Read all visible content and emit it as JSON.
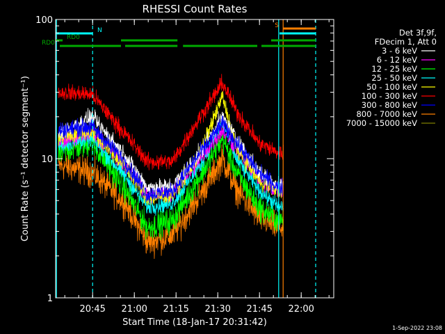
{
  "chart_data": {
    "type": "line",
    "title": "RHESSI Count Rates",
    "xlabel": "Start Time (18-Jan-17 20:31:42)",
    "ylabel": "Count Rate (s⁻¹ detector segment⁻¹)",
    "yscale": "log",
    "ylim": [
      1,
      100
    ],
    "xlim_minutes": [
      0,
      100
    ],
    "x_ticks": [
      {
        "label": "20:45",
        "min": 13.3
      },
      {
        "label": "21:00",
        "min": 28.3
      },
      {
        "label": "21:15",
        "min": 43.3
      },
      {
        "label": "21:30",
        "min": 58.3
      },
      {
        "label": "21:45",
        "min": 73.3
      },
      {
        "label": "22:00",
        "min": 88.3
      }
    ],
    "y_ticks": [
      {
        "label": "1",
        "value": 1
      },
      {
        "label": "10",
        "value": 10
      },
      {
        "label": "100",
        "value": 100
      }
    ],
    "legend_header": [
      "Det 3f,9f,",
      "FDecim 1, Att 0"
    ],
    "series": [
      {
        "name": "3 - 6 keV",
        "color": "#ffffff",
        "keypoints": [
          [
            1,
            15
          ],
          [
            13,
            20
          ],
          [
            25,
            10.5
          ],
          [
            33,
            6.2
          ],
          [
            42,
            6.3
          ],
          [
            52,
            11
          ],
          [
            60,
            20
          ],
          [
            65,
            14
          ],
          [
            73,
            8
          ],
          [
            80,
            6.5
          ],
          [
            82,
            6.5
          ]
        ]
      },
      {
        "name": "6 - 12 keV",
        "color": "#ff00ff",
        "keypoints": [
          [
            1,
            13
          ],
          [
            13,
            16
          ],
          [
            25,
            9
          ],
          [
            33,
            5.5
          ],
          [
            42,
            5.6
          ],
          [
            52,
            10
          ],
          [
            60,
            16
          ],
          [
            65,
            12
          ],
          [
            73,
            7
          ],
          [
            80,
            6
          ],
          [
            82,
            6
          ]
        ]
      },
      {
        "name": "12 - 25 keV",
        "color": "#00ff00",
        "keypoints": [
          [
            1,
            11
          ],
          [
            13,
            13
          ],
          [
            25,
            6
          ],
          [
            33,
            3.2
          ],
          [
            42,
            3.6
          ],
          [
            52,
            7.5
          ],
          [
            60,
            14
          ],
          [
            65,
            8
          ],
          [
            73,
            4.5
          ],
          [
            80,
            3.6
          ],
          [
            82,
            3.6
          ]
        ]
      },
      {
        "name": "25 - 50 keV",
        "color": "#00ffff",
        "keypoints": [
          [
            1,
            12.5
          ],
          [
            13,
            14
          ],
          [
            25,
            7.5
          ],
          [
            33,
            4.5
          ],
          [
            42,
            4.8
          ],
          [
            52,
            9
          ],
          [
            60,
            18
          ],
          [
            65,
            10
          ],
          [
            73,
            6
          ],
          [
            80,
            4.5
          ],
          [
            82,
            4.5
          ]
        ]
      },
      {
        "name": "50 - 100 keV",
        "color": "#ffff00",
        "keypoints": [
          [
            1,
            14
          ],
          [
            13,
            16
          ],
          [
            25,
            8.8
          ],
          [
            33,
            5.2
          ],
          [
            42,
            5.5
          ],
          [
            52,
            11
          ],
          [
            60,
            28
          ],
          [
            65,
            12
          ],
          [
            73,
            7
          ],
          [
            80,
            6
          ],
          [
            82,
            6
          ]
        ]
      },
      {
        "name": "100 - 300 keV",
        "color": "#ff0000",
        "keypoints": [
          [
            1,
            30
          ],
          [
            13,
            29
          ],
          [
            25,
            15
          ],
          [
            33,
            9.5
          ],
          [
            42,
            9.5
          ],
          [
            52,
            20
          ],
          [
            60,
            35
          ],
          [
            65,
            22
          ],
          [
            73,
            13
          ],
          [
            80,
            11
          ],
          [
            82,
            11
          ]
        ]
      },
      {
        "name": "300 - 800 keV",
        "color": "#0000ff",
        "keypoints": [
          [
            1,
            16
          ],
          [
            13,
            17
          ],
          [
            25,
            9.5
          ],
          [
            33,
            5.5
          ],
          [
            42,
            5.8
          ],
          [
            52,
            11
          ],
          [
            60,
            18
          ],
          [
            65,
            13
          ],
          [
            73,
            8
          ],
          [
            80,
            6.2
          ],
          [
            82,
            6.2
          ]
        ]
      },
      {
        "name": "800 - 7000 keV",
        "color": "#ff7f00",
        "keypoints": [
          [
            1,
            9
          ],
          [
            13,
            8
          ],
          [
            25,
            4.8
          ],
          [
            33,
            2.5
          ],
          [
            42,
            2.8
          ],
          [
            52,
            5.5
          ],
          [
            60,
            10
          ],
          [
            65,
            6
          ],
          [
            73,
            3.8
          ],
          [
            80,
            3.2
          ],
          [
            82,
            3.2
          ]
        ]
      },
      {
        "name": "7000 - 15000 keV",
        "color": "#7f7f00",
        "keypoints": []
      }
    ],
    "state_bars": [
      {
        "label": "N",
        "color": "#00ffff",
        "row": "top",
        "segments": [
          [
            0,
            13.3
          ]
        ],
        "label_color": "#00ffff",
        "label_at": 15
      },
      {
        "label": "RD0",
        "color": "#00aa00",
        "row": "mid",
        "segments": [
          [
            0,
            2.5
          ]
        ],
        "label_color": "#00aa00",
        "label_at": 4
      },
      {
        "label": "RD0",
        "color": "#00aa00",
        "row": "low",
        "segments": [
          [
            1.5,
            23.5
          ],
          [
            25,
            43.8
          ],
          [
            45.8,
            72.5
          ],
          [
            74,
            93.5
          ]
        ],
        "label_color": "#00aa00",
        "label_at": -5
      },
      {
        "label": "",
        "color": "#00aa00",
        "row": "mid",
        "segments": [
          [
            23.5,
            43.8
          ],
          [
            77.5,
            93.5
          ]
        ]
      },
      {
        "label": "S",
        "color": "#ff7f00",
        "row": "top_hi",
        "segments": [
          [
            81.8,
            93.5
          ]
        ],
        "label_color": "#ff7f00",
        "label_at": 78.8
      },
      {
        "label": "",
        "color": "#00ffff",
        "row": "top",
        "segments": [
          [
            80.5,
            93.5
          ]
        ]
      }
    ],
    "vlines": [
      {
        "min": 0.3,
        "color": "#00ffff",
        "style": "solid"
      },
      {
        "min": 13.3,
        "color": "#00ffff",
        "style": "dashed"
      },
      {
        "min": 80.2,
        "color": "#00ffff",
        "style": "solid"
      },
      {
        "min": 81.8,
        "color": "#ff7f00",
        "style": "solid"
      },
      {
        "min": 93.5,
        "color": "#00ffff",
        "style": "dashed"
      }
    ],
    "footer": "1-Sep-2022 23:08"
  }
}
